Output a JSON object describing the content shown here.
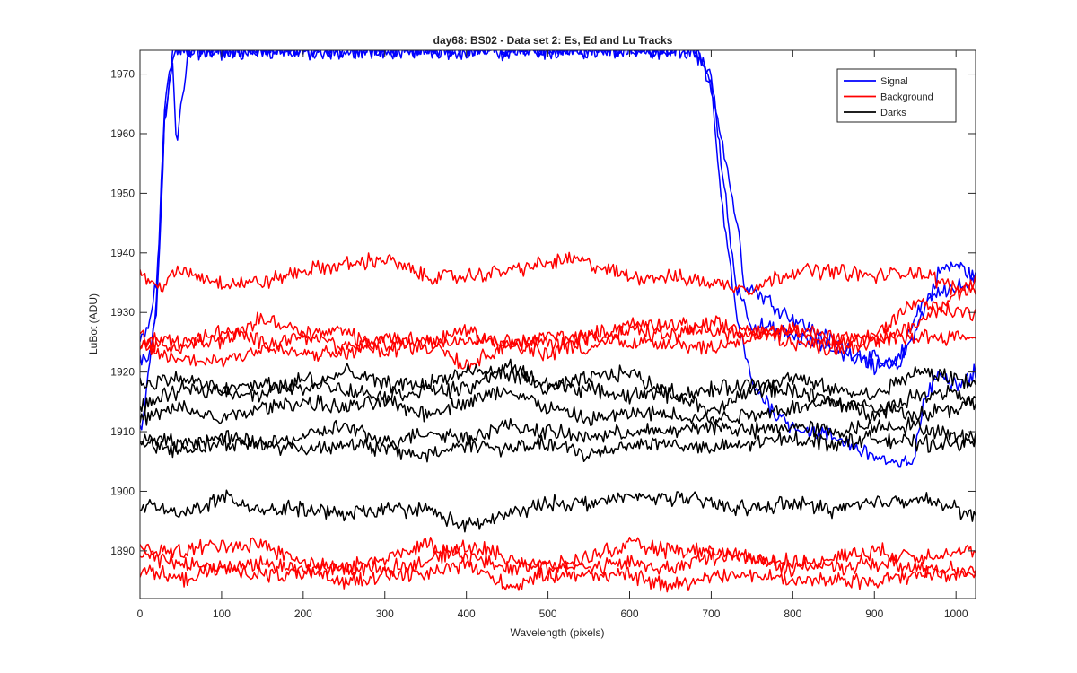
{
  "chart_data": {
    "type": "line",
    "title": "day68: BS02 - Data set 2: Es, Ed and Lu Tracks",
    "xlabel": "Wavelength (pixels)",
    "ylabel": "LuBot (ADU)",
    "xlim": [
      0,
      1024
    ],
    "ylim": [
      1882,
      1974
    ],
    "xticks": [
      0,
      100,
      200,
      300,
      400,
      500,
      600,
      700,
      800,
      900,
      1000
    ],
    "yticks": [
      1890,
      1900,
      1910,
      1920,
      1930,
      1940,
      1950,
      1960,
      1970
    ],
    "grid": false,
    "legend_position": "top-right",
    "legend": [
      {
        "label": "Signal",
        "color": "#0000ff"
      },
      {
        "label": "Background",
        "color": "#ff0000"
      },
      {
        "label": "Darks",
        "color": "#000000"
      }
    ],
    "series": [
      {
        "group": "Signal",
        "color": "#0000ff",
        "x": [
          0,
          10,
          20,
          25,
          30,
          40,
          45,
          60,
          80,
          100,
          300,
          500,
          680,
          700,
          715,
          735,
          740,
          770,
          800,
          850,
          900,
          930,
          960,
          980,
          1000,
          1024
        ],
        "y": [
          1925,
          1927,
          1935,
          1945,
          1962,
          1972,
          1974,
          1974,
          1974,
          1974,
          1974,
          1974,
          1974,
          1968,
          1958,
          1942,
          1935,
          1932,
          1929,
          1925,
          1922,
          1921,
          1930,
          1937,
          1938,
          1936
        ]
      },
      {
        "group": "Signal",
        "color": "#0000ff",
        "x": [
          0,
          10,
          20,
          25,
          30,
          40,
          45,
          60,
          100,
          500,
          680,
          700,
          715,
          730,
          750,
          800,
          850,
          900,
          930,
          960,
          980,
          1000,
          1024
        ],
        "y": [
          1922,
          1922,
          1930,
          1945,
          1962,
          1972,
          1958,
          1974,
          1974,
          1974,
          1974,
          1970,
          1952,
          1935,
          1928,
          1926,
          1924,
          1921,
          1922,
          1932,
          1934,
          1934,
          1935
        ]
      },
      {
        "group": "Signal",
        "color": "#0000ff",
        "x": [
          0,
          5,
          10,
          20,
          25,
          30,
          40,
          60,
          100,
          500,
          680,
          700,
          710,
          730,
          750,
          780,
          800,
          850,
          900,
          930,
          950,
          960,
          980,
          1000,
          1024
        ],
        "y": [
          1910,
          1912,
          1920,
          1932,
          1948,
          1965,
          1974,
          1974,
          1974,
          1974,
          1974,
          1968,
          1952,
          1930,
          1918,
          1913,
          1911,
          1909,
          1906,
          1904,
          1906,
          1915,
          1920,
          1918,
          1920
        ]
      },
      {
        "group": "Background",
        "color": "#ff0000",
        "x": [
          0,
          20,
          50,
          100,
          150,
          200,
          300,
          350,
          400,
          450,
          530,
          600,
          650,
          700,
          750,
          800,
          850,
          900,
          950,
          1000,
          1024
        ],
        "y": [
          1937,
          1934,
          1937,
          1935,
          1935,
          1937,
          1939,
          1936,
          1936,
          1937,
          1939,
          1936,
          1936,
          1935,
          1934,
          1937,
          1937,
          1936,
          1937,
          1934,
          1934
        ]
      },
      {
        "group": "Background",
        "color": "#ff0000",
        "x": [
          0,
          50,
          100,
          150,
          200,
          250,
          300,
          350,
          400,
          450,
          500,
          550,
          600,
          650,
          700,
          750,
          800,
          850,
          900,
          950,
          1000,
          1024
        ],
        "y": [
          1926,
          1925,
          1925,
          1929,
          1927,
          1924,
          1926,
          1925,
          1927,
          1924,
          1926,
          1926,
          1928,
          1928,
          1927,
          1926,
          1927,
          1926,
          1926,
          1932,
          1930,
          1930
        ]
      },
      {
        "group": "Background",
        "color": "#ff0000",
        "x": [
          0,
          50,
          100,
          150,
          200,
          250,
          300,
          350,
          400,
          450,
          500,
          550,
          600,
          650,
          700,
          750,
          800,
          850,
          900,
          950,
          1000,
          1024
        ],
        "y": [
          1925,
          1924,
          1927,
          1925,
          1926,
          1927,
          1923,
          1926,
          1921,
          1925,
          1925,
          1924,
          1927,
          1926,
          1928,
          1927,
          1925,
          1924,
          1925,
          1928,
          1933,
          1935
        ]
      },
      {
        "group": "Background",
        "color": "#ff0000",
        "x": [
          0,
          50,
          100,
          150,
          200,
          250,
          300,
          350,
          400,
          450,
          500,
          550,
          600,
          650,
          700,
          750,
          800,
          850,
          900,
          950,
          1000,
          1024
        ],
        "y": [
          1924,
          1922,
          1922,
          1924,
          1923,
          1923,
          1925,
          1924,
          1926,
          1925,
          1923,
          1926,
          1925,
          1925,
          1924,
          1926,
          1927,
          1925,
          1925,
          1926,
          1926,
          1926
        ]
      },
      {
        "group": "Darks",
        "color": "#000000",
        "x": [
          0,
          50,
          100,
          150,
          200,
          250,
          300,
          350,
          400,
          450,
          500,
          550,
          600,
          650,
          700,
          750,
          800,
          850,
          900,
          950,
          1000,
          1024
        ],
        "y": [
          1918,
          1919,
          1917,
          1918,
          1917,
          1920,
          1918,
          1918,
          1920,
          1920,
          1917,
          1919,
          1920,
          1916,
          1917,
          1918,
          1919,
          1917,
          1916,
          1920,
          1919,
          1918
        ]
      },
      {
        "group": "Darks",
        "color": "#000000",
        "x": [
          0,
          50,
          100,
          150,
          200,
          250,
          300,
          350,
          400,
          450,
          500,
          550,
          600,
          650,
          700,
          750,
          800,
          850,
          900,
          950,
          1000,
          1024
        ],
        "y": [
          1914,
          1917,
          1917,
          1916,
          1919,
          1917,
          1916,
          1917,
          1917,
          1921,
          1918,
          1917,
          1916,
          1917,
          1913,
          1917,
          1917,
          1915,
          1913,
          1916,
          1917,
          1914
        ]
      },
      {
        "group": "Darks",
        "color": "#000000",
        "x": [
          0,
          50,
          100,
          150,
          200,
          250,
          300,
          350,
          400,
          450,
          500,
          550,
          600,
          650,
          700,
          750,
          800,
          850,
          900,
          950,
          1000,
          1024
        ],
        "y": [
          1912,
          1914,
          1912,
          1914,
          1915,
          1914,
          1915,
          1913,
          1915,
          1917,
          1914,
          1912,
          1913,
          1913,
          1912,
          1913,
          1914,
          1915,
          1914,
          1913,
          1914,
          1915
        ]
      },
      {
        "group": "Darks",
        "color": "#000000",
        "x": [
          0,
          50,
          100,
          150,
          200,
          250,
          300,
          350,
          400,
          450,
          500,
          550,
          600,
          650,
          700,
          750,
          800,
          850,
          900,
          950,
          1000,
          1024
        ],
        "y": [
          1909,
          1908,
          1909,
          1908,
          1909,
          1911,
          1908,
          1910,
          1909,
          1911,
          1910,
          1909,
          1910,
          1910,
          1911,
          1910,
          1911,
          1910,
          1911,
          1911,
          1909,
          1909
        ]
      },
      {
        "group": "Darks",
        "color": "#000000",
        "x": [
          0,
          50,
          100,
          150,
          200,
          250,
          300,
          350,
          400,
          450,
          500,
          550,
          600,
          650,
          700,
          750,
          800,
          850,
          900,
          950,
          1000,
          1024
        ],
        "y": [
          1908,
          1907,
          1908,
          1908,
          1907,
          1908,
          1907,
          1906,
          1908,
          1907,
          1908,
          1906,
          1908,
          1908,
          1907,
          1908,
          1909,
          1908,
          1909,
          1908,
          1908,
          1909
        ]
      },
      {
        "group": "Darks",
        "color": "#000000",
        "x": [
          0,
          50,
          100,
          150,
          200,
          250,
          300,
          350,
          400,
          450,
          500,
          550,
          600,
          650,
          700,
          750,
          800,
          850,
          900,
          950,
          1000,
          1024
        ],
        "y": [
          1898,
          1896,
          1899,
          1897,
          1897,
          1896,
          1897,
          1897,
          1894,
          1896,
          1898,
          1898,
          1899,
          1899,
          1898,
          1897,
          1898,
          1897,
          1898,
          1899,
          1897,
          1896
        ]
      },
      {
        "group": "Background",
        "color": "#ff0000",
        "x": [
          0,
          50,
          100,
          150,
          200,
          250,
          300,
          350,
          400,
          450,
          500,
          550,
          600,
          650,
          700,
          750,
          800,
          850,
          900,
          950,
          1000,
          1024
        ],
        "y": [
          1890,
          1890,
          1891,
          1891,
          1888,
          1887,
          1887,
          1888,
          1891,
          1889,
          1887,
          1889,
          1891,
          1890,
          1890,
          1889,
          1887,
          1889,
          1890,
          1889,
          1890,
          1890
        ]
      },
      {
        "group": "Background",
        "color": "#ff0000",
        "x": [
          0,
          50,
          100,
          150,
          200,
          250,
          300,
          350,
          400,
          450,
          500,
          550,
          600,
          650,
          700,
          750,
          800,
          850,
          900,
          950,
          1000,
          1024
        ],
        "y": [
          1889,
          1888,
          1887,
          1888,
          1887,
          1887,
          1889,
          1891,
          1889,
          1887,
          1888,
          1887,
          1888,
          1887,
          1889,
          1889,
          1888,
          1887,
          1888,
          1887,
          1887,
          1887
        ]
      },
      {
        "group": "Background",
        "color": "#ff0000",
        "x": [
          0,
          50,
          100,
          150,
          200,
          250,
          300,
          350,
          400,
          450,
          500,
          550,
          600,
          650,
          700,
          750,
          800,
          850,
          900,
          950,
          1000,
          1024
        ],
        "y": [
          1887,
          1885,
          1887,
          1886,
          1886,
          1885,
          1886,
          1886,
          1888,
          1884,
          1886,
          1886,
          1886,
          1884,
          1886,
          1886,
          1885,
          1885,
          1885,
          1886,
          1886,
          1886
        ]
      }
    ]
  }
}
